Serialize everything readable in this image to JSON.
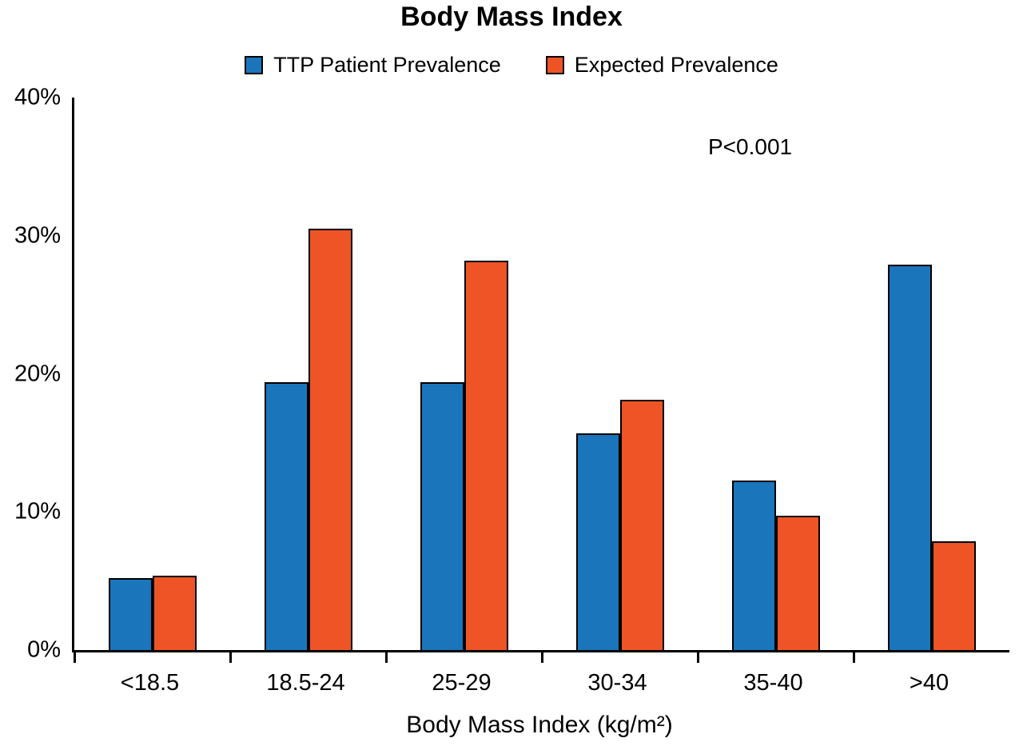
{
  "chart_data": {
    "type": "bar",
    "title": "Body Mass Index",
    "categories": [
      "<18.5",
      "18.5-24",
      "25-29",
      "30-34",
      "35-40",
      ">40"
    ],
    "series": [
      {
        "name": "TTP Patient Prevalence",
        "color": "#1b75bb",
        "values": [
          5.2,
          19.4,
          19.4,
          15.7,
          12.3,
          27.9
        ]
      },
      {
        "name": "Expected Prevalence",
        "color": "#ee5426",
        "values": [
          5.4,
          30.5,
          28.2,
          18.1,
          9.7,
          7.9
        ]
      }
    ],
    "xlabel": "Body Mass Index (kg/m²)",
    "ylabel": "",
    "ylim": [
      0,
      40
    ],
    "yticks": [
      "0%",
      "10%",
      "20%",
      "30%",
      "40%"
    ],
    "ytick_values": [
      0,
      10,
      20,
      30,
      40
    ],
    "legend_position": "top",
    "grid": false,
    "annotation": "P<0.001",
    "axis_color": "#000000",
    "background_color": "#ffffff"
  }
}
